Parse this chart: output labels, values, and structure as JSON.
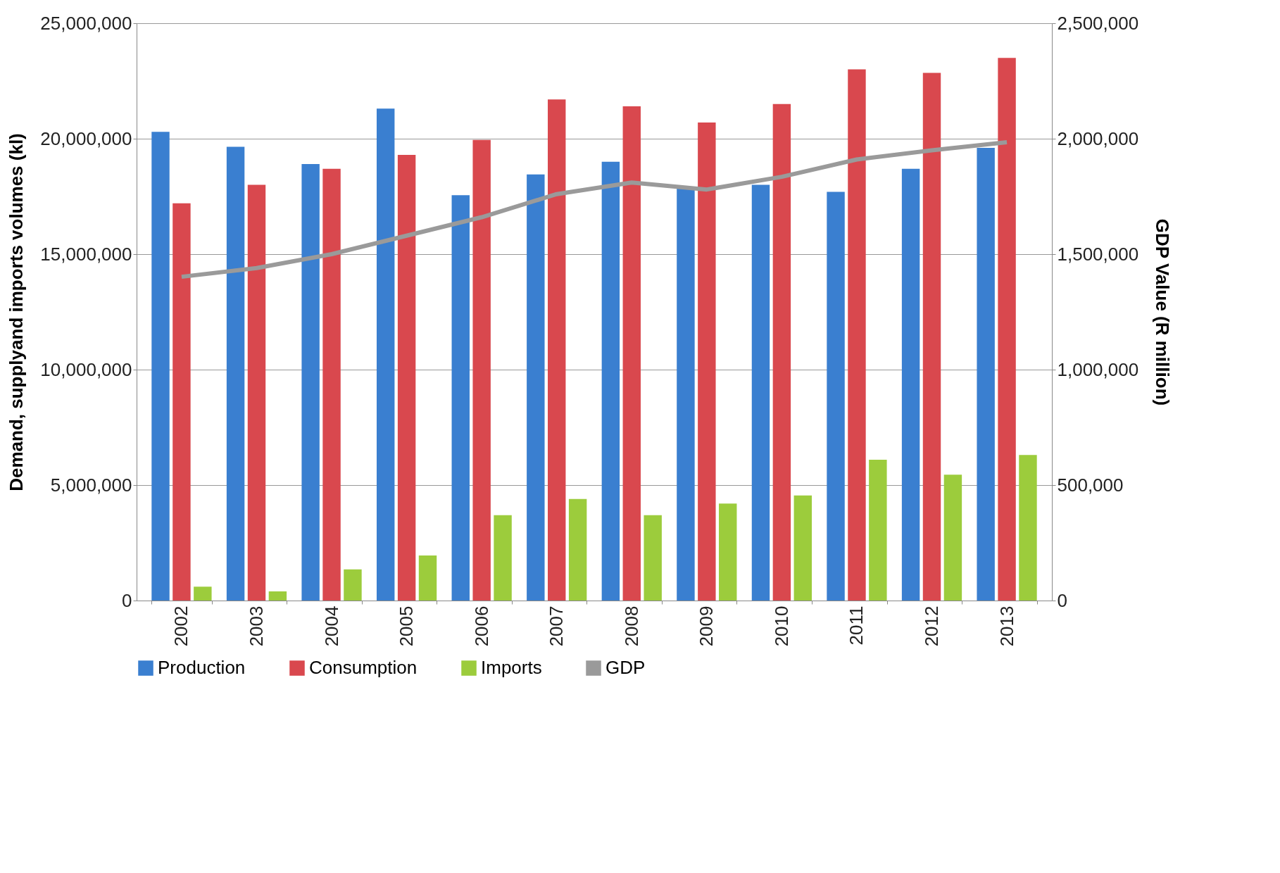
{
  "chart_data": {
    "type": "bar",
    "ylabel": "Demand, supplyand imports volumes (kl)",
    "y2label": "GDP Value (R million)",
    "categories": [
      "2002",
      "2003",
      "2004",
      "2005",
      "2006",
      "2007",
      "2008",
      "2009",
      "2010",
      "2011",
      "2012",
      "2013"
    ],
    "series": [
      {
        "name": "Production",
        "color": "#3a7fd0",
        "values": [
          20300000,
          19650000,
          18900000,
          21300000,
          17550000,
          18450000,
          19000000,
          17900000,
          18000000,
          17700000,
          18700000,
          19600000
        ]
      },
      {
        "name": "Consumption",
        "color": "#d9484e",
        "values": [
          17200000,
          18000000,
          18700000,
          19300000,
          19950000,
          21700000,
          21400000,
          20700000,
          21500000,
          23000000,
          22850000,
          23500000
        ]
      },
      {
        "name": "Imports",
        "color": "#9ccc3c",
        "values": [
          600000,
          400000,
          1350000,
          1950000,
          3700000,
          4400000,
          3700000,
          4200000,
          4550000,
          6100000,
          5450000,
          6300000
        ]
      },
      {
        "name": "GDP",
        "color": "#9a9a9a",
        "type": "line",
        "axis": "y2",
        "values": [
          1402000,
          1440000,
          1500000,
          1580000,
          1660000,
          1760000,
          1810000,
          1780000,
          1835000,
          1910000,
          1950000,
          1985000
        ]
      }
    ],
    "ylim": [
      0,
      25000000
    ],
    "yticks": [
      0,
      {
        "value": 5000000,
        "label": "5,000,000"
      },
      {
        "value": 10000000,
        "label": "10,000,000"
      },
      {
        "value": 15000000,
        "label": "15,000,000"
      },
      {
        "value": 20000000,
        "label": "20,000,000"
      },
      {
        "value": 25000000,
        "label": "25,000,000"
      }
    ],
    "y2lim": [
      0,
      2500000
    ],
    "y2ticks": [
      0,
      {
        "value": 500000,
        "label": "500,000"
      },
      {
        "value": 1000000,
        "label": "1,000,000"
      },
      {
        "value": 1500000,
        "label": "1,500,000"
      },
      {
        "value": 2000000,
        "label": "2,000,000"
      },
      {
        "value": 2500000,
        "label": "2,500,000"
      }
    ],
    "grid": "y",
    "legend": "bottom"
  }
}
